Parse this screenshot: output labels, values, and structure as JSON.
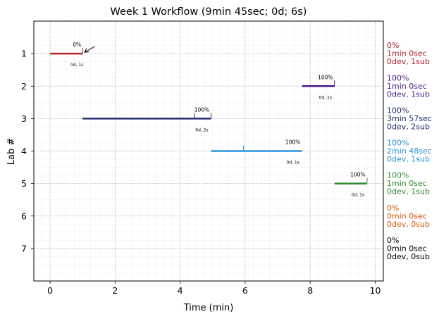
{
  "chart_data": {
    "type": "gantt",
    "title": "Week 1 Workflow (9min 45sec; 0d; 6s)",
    "xlabel": "Time (min)",
    "ylabel": "Lab #",
    "xlim": [
      -0.5,
      10.25
    ],
    "ylim": [
      8,
      0
    ],
    "xticks": [
      0,
      2,
      4,
      6,
      8,
      10
    ],
    "yticks": [
      1,
      2,
      3,
      4,
      5,
      6,
      7
    ],
    "grid": true,
    "labs": [
      {
        "lab": 1,
        "start": 0.0,
        "end": 1.0,
        "percent": "0%",
        "duration_label": "0d, 1s",
        "color": "#b5202a",
        "sub_marks": [
          1.0
        ],
        "summary": [
          "0%",
          "1min 0sec",
          "0dev, 1sub"
        ]
      },
      {
        "lab": 2,
        "start": 7.75,
        "end": 8.75,
        "percent": "100%",
        "duration_label": "0d, 1s",
        "color": "#4b1a8c",
        "sub_marks": [
          8.75
        ],
        "summary": [
          "100%",
          "1min 0sec",
          "0dev, 1sub"
        ]
      },
      {
        "lab": 3,
        "start": 1.0,
        "end": 4.95,
        "percent": "100%",
        "duration_label": "0d, 2s",
        "color": "#1f2d6e",
        "sub_marks": [
          4.45,
          4.95
        ],
        "summary": [
          "100%",
          "3min 57sec",
          "0dev, 2sub"
        ]
      },
      {
        "lab": 4,
        "start": 4.95,
        "end": 7.75,
        "percent": "100%",
        "duration_label": "0d, 1s",
        "color": "#2b93d8",
        "sub_marks": [
          5.95
        ],
        "summary": [
          "100%",
          "2min 48sec",
          "0dev, 1sub"
        ]
      },
      {
        "lab": 5,
        "start": 8.75,
        "end": 9.75,
        "percent": "100%",
        "duration_label": "0d, 1s",
        "color": "#2e8b34",
        "sub_marks": [
          9.75
        ],
        "summary": [
          "100%",
          "1min 0sec",
          "0dev, 1sub"
        ]
      },
      {
        "lab": 6,
        "start": null,
        "end": null,
        "percent": "0%",
        "duration_label": "",
        "color": "#d2560e",
        "sub_marks": [],
        "summary": [
          "0%",
          "0min 0sec",
          "0dev, 0sub"
        ]
      },
      {
        "lab": 7,
        "start": null,
        "end": null,
        "percent": "0%",
        "duration_label": "",
        "color": "#000000",
        "sub_marks": [],
        "summary": [
          "0%",
          "0min 0sec",
          "0dev, 0sub"
        ]
      }
    ],
    "annotation": {
      "type": "arrow",
      "lab": 1,
      "points_to_time": 1.0
    }
  }
}
